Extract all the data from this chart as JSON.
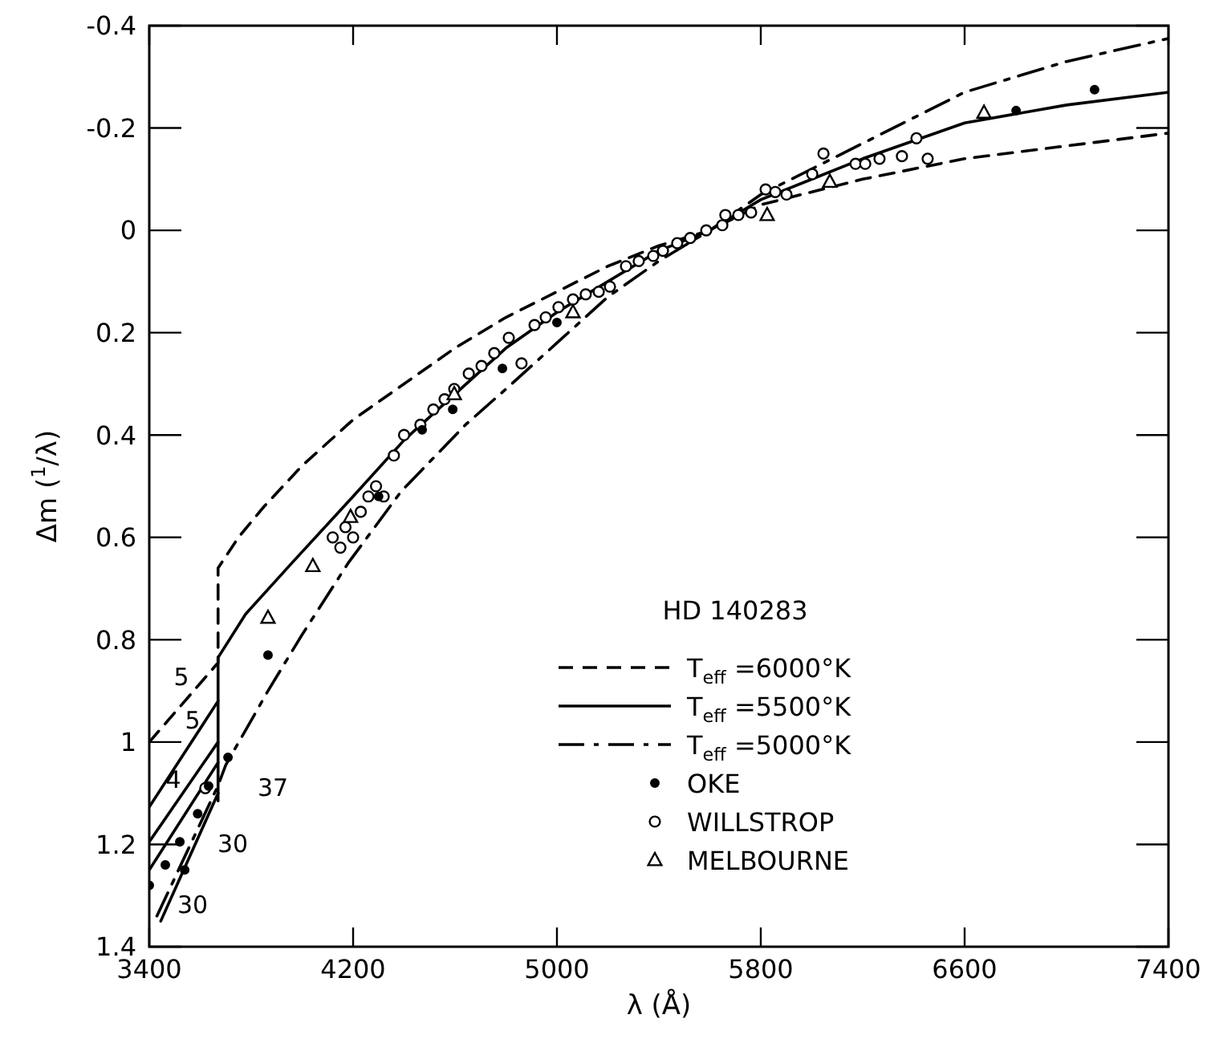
{
  "chart_data": {
    "type": "line",
    "xlabel": "λ (Å)",
    "ylabel": "Δm ($^{1}$/λ)",
    "legend_title": "HD 140283",
    "xlim": [
      3400,
      7400
    ],
    "xticks": [
      3400,
      4200,
      5000,
      5800,
      6600,
      7400
    ],
    "ylim": [
      1.4,
      -0.4
    ],
    "yticks": [
      -0.4,
      -0.2,
      0.0,
      0.2,
      0.4,
      0.6,
      0.8,
      1.0,
      1.2,
      1.4
    ],
    "grid": false,
    "legend": "bottom right",
    "series": [
      {
        "name": "T$_{eff}$ =6000°K",
        "line_style": "dashed",
        "color": "#000000",
        "x": [
          3400,
          3670,
          3670,
          3750,
          3850,
          4000,
          4200,
          4400,
          4600,
          4800,
          5000,
          5200,
          5400,
          5600,
          5800,
          6200,
          6600,
          7000,
          7400
        ],
        "values": [
          1.0,
          0.845,
          0.66,
          0.6,
          0.54,
          0.46,
          0.37,
          0.3,
          0.23,
          0.17,
          0.12,
          0.07,
          0.03,
          0.0,
          -0.05,
          -0.1,
          -0.14,
          -0.165,
          -0.19
        ]
      },
      {
        "name": "T$_{eff}$ =5500°K",
        "line_style": "solid",
        "color": "#000000",
        "x": [
          3670,
          3670,
          3778,
          3960,
          4200,
          4400,
          4600,
          4800,
          5000,
          5200,
          5400,
          5600,
          5800,
          6200,
          6600,
          7000,
          7400
        ],
        "values": [
          1.115,
          0.835,
          0.75,
          0.65,
          0.52,
          0.41,
          0.32,
          0.23,
          0.16,
          0.1,
          0.04,
          0.0,
          -0.06,
          -0.14,
          -0.21,
          -0.245,
          -0.27
        ]
      },
      {
        "name": "T$_{eff}$ =5000°K",
        "line_style": "dashdot",
        "color": "#000000",
        "x": [
          3430,
          3670,
          3700,
          3866,
          4000,
          4181,
          4389,
          4641,
          4800,
          5000,
          5200,
          5400,
          5600,
          5800,
          6200,
          6600,
          7000,
          7400
        ],
        "values": [
          1.34,
          1.085,
          1.045,
          0.9,
          0.79,
          0.65,
          0.51,
          0.38,
          0.31,
          0.22,
          0.13,
          0.06,
          0.0,
          -0.07,
          -0.17,
          -0.27,
          -0.33,
          -0.375
        ]
      },
      {
        "type": "line",
        "line_style": "solid",
        "color": "#000000",
        "x": [
          3400,
          3670
        ],
        "values": [
          1.127,
          0.92
        ]
      },
      {
        "type": "line",
        "line_style": "solid",
        "color": "#000000",
        "x": [
          3400,
          3670
        ],
        "values": [
          1.195,
          1.0
        ]
      },
      {
        "type": "line",
        "line_style": "solid",
        "color": "#000000",
        "x": [
          3400,
          3670
        ],
        "values": [
          1.25,
          1.04
        ]
      },
      {
        "type": "line",
        "line_style": "solid",
        "color": "#000000",
        "x": [
          3445,
          3670
        ],
        "values": [
          1.35,
          1.1
        ]
      },
      {
        "name": "OKE",
        "type": "scatter",
        "marker": "circle",
        "color": "#000000",
        "x": [
          3400,
          3463,
          3520,
          3539,
          3590,
          3633,
          3709,
          3866,
          4300,
          4471,
          4591,
          4786,
          5000,
          6802,
          7110
        ],
        "values": [
          1.28,
          1.24,
          1.195,
          1.25,
          1.14,
          1.086,
          1.03,
          0.83,
          0.52,
          0.39,
          0.35,
          0.27,
          0.18,
          -0.234,
          -0.275
        ]
      },
      {
        "name": "WILLSTROP",
        "type": "scatter",
        "marker": "circle",
        "color": "#000000",
        "x": [
          3620,
          4120,
          4150,
          4170,
          4200,
          4230,
          4260,
          4290,
          4320,
          4360,
          4400,
          4464,
          4515,
          4559,
          4597,
          4654,
          4704,
          4754,
          4811,
          4861,
          4912,
          4956,
          5006,
          5063,
          5113,
          5164,
          5208,
          5271,
          5321,
          5378,
          5416,
          5472,
          5523,
          5586,
          5649,
          5661,
          5712,
          5762,
          5819,
          5857,
          5901,
          6002,
          6046,
          6172,
          6210,
          6266,
          6354,
          6411,
          6455
        ],
        "values": [
          1.09,
          0.6,
          0.62,
          0.58,
          0.6,
          0.55,
          0.52,
          0.5,
          0.52,
          0.44,
          0.4,
          0.38,
          0.35,
          0.33,
          0.31,
          0.28,
          0.265,
          0.24,
          0.21,
          0.26,
          0.185,
          0.17,
          0.15,
          0.135,
          0.125,
          0.12,
          0.11,
          0.07,
          0.06,
          0.05,
          0.04,
          0.025,
          0.015,
          0.0,
          -0.01,
          -0.03,
          -0.03,
          -0.035,
          -0.08,
          -0.075,
          -0.07,
          -0.11,
          -0.15,
          -0.13,
          -0.13,
          -0.14,
          -0.145,
          -0.18,
          -0.14
        ]
      },
      {
        "name": "MELBOURNE",
        "type": "scatter",
        "marker": "triangle",
        "color": "#000000",
        "x": [
          3866,
          4042,
          4190,
          4597,
          5063,
          5825,
          6071,
          6676
        ],
        "values": [
          0.757,
          0.656,
          0.56,
          0.32,
          0.16,
          -0.03,
          -0.095,
          -0.23
        ]
      }
    ],
    "annotations": [
      "5",
      "5",
      "4",
      "37",
      "30",
      "30"
    ]
  }
}
